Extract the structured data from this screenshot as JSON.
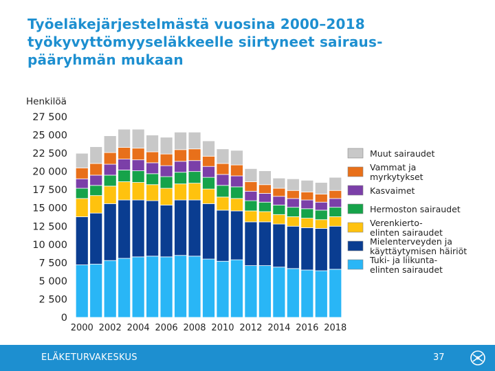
{
  "slide": {
    "title_lines": [
      "Työeläkejärjestelmästä vuosina 2000–2018",
      "työkyvyttömyyseläkkeelle siirtyneet sairaus-",
      "pääryhmän mukaan"
    ]
  },
  "footer": {
    "organization": "ELÄKETURVAKESKUS",
    "page_number": "37",
    "logo_icon": "eturva-logo-icon"
  },
  "colors": {
    "title": "#1d8fd0",
    "footer_bg": "#1d8fd0"
  },
  "chart_data": {
    "type": "bar",
    "stacked": true,
    "title": "",
    "ylabel": "Henkilöä",
    "xlabel": "",
    "ylim": [
      0,
      27500
    ],
    "yticks": [
      0,
      2500,
      5000,
      7500,
      10000,
      12500,
      15000,
      17500,
      20000,
      22500,
      25000,
      27500
    ],
    "ytick_labels": [
      "0",
      "2 500",
      "5 000",
      "7 500",
      "10 000",
      "12 500",
      "15 000",
      "17 500",
      "20 000",
      "22 500",
      "25 000",
      "27 500"
    ],
    "categories": [
      "2000",
      "2001",
      "2002",
      "2003",
      "2004",
      "2005",
      "2006",
      "2007",
      "2008",
      "2009",
      "2010",
      "2011",
      "2012",
      "2013",
      "2014",
      "2015",
      "2016",
      "2017",
      "2018"
    ],
    "xtick_labels": [
      "2000",
      "2002",
      "2004",
      "2006",
      "2008",
      "2010",
      "2012",
      "2014",
      "2016",
      "2018"
    ],
    "legend_position": "right",
    "legend_order": [
      "Muut sairaudet",
      "Vammat ja myrkytykset",
      "Kasvaimet",
      "Hermoston sairaudet",
      "Verenkierto-elinten sairaudet",
      "Mielenterveyden ja käyttäytymisen häiriöt",
      "Tuki- ja liikunta-elinten sairaudet"
    ],
    "series": [
      {
        "name": "Tuki- ja liikunta-elinten sairaudet",
        "legend_lines": [
          "Tuki- ja liikunta-",
          "elinten sairaudet"
        ],
        "color": "#29b6f6",
        "values": [
          7200,
          7300,
          7800,
          8100,
          8300,
          8400,
          8300,
          8500,
          8400,
          8000,
          7700,
          7900,
          7100,
          7100,
          6900,
          6700,
          6500,
          6400,
          6600
        ]
      },
      {
        "name": "Mielenterveyden ja käyttäytymisen häiriöt",
        "legend_lines": [
          "Mielenterveyden ja",
          "käyttäytymisen häiriöt"
        ],
        "color": "#0a3d91",
        "values": [
          6600,
          7000,
          7800,
          8000,
          7800,
          7600,
          7100,
          7600,
          7700,
          7600,
          7000,
          6700,
          6000,
          6000,
          5900,
          5800,
          5800,
          5800,
          5900
        ]
      },
      {
        "name": "Verenkierto-elinten sairaudet",
        "legend_lines": [
          "Verenkierto-",
          "elinten sairaudet"
        ],
        "color": "#ffc20e",
        "values": [
          2500,
          2400,
          2400,
          2500,
          2400,
          2200,
          2300,
          2200,
          2300,
          2000,
          1800,
          1700,
          1500,
          1400,
          1300,
          1300,
          1300,
          1200,
          1300
        ]
      },
      {
        "name": "Hermoston sairaudet",
        "legend_lines": [
          "Hermoston sairaudet"
        ],
        "color": "#16a34a",
        "values": [
          1400,
          1400,
          1500,
          1600,
          1600,
          1500,
          1600,
          1600,
          1600,
          1600,
          1600,
          1600,
          1400,
          1300,
          1300,
          1300,
          1300,
          1300,
          1300
        ]
      },
      {
        "name": "Kasvaimet",
        "legend_lines": [
          "Kasvaimet"
        ],
        "color": "#7b3fa8",
        "values": [
          1300,
          1400,
          1500,
          1500,
          1500,
          1500,
          1500,
          1500,
          1500,
          1500,
          1500,
          1500,
          1300,
          1200,
          1200,
          1200,
          1200,
          1100,
          1200
        ]
      },
      {
        "name": "Vammat ja myrkytykset",
        "legend_lines": [
          "Vammat ja",
          "myrkytykset"
        ],
        "color": "#e8701a",
        "values": [
          1500,
          1600,
          1600,
          1600,
          1600,
          1500,
          1600,
          1600,
          1600,
          1400,
          1500,
          1500,
          1300,
          1200,
          1100,
          1100,
          1100,
          1100,
          1100
        ]
      },
      {
        "name": "Muut sairaudet",
        "legend_lines": [
          "Muut sairaudet"
        ],
        "color": "#c8c8c8",
        "values": [
          2000,
          2300,
          2300,
          2500,
          2600,
          2300,
          2300,
          2400,
          2300,
          2100,
          2000,
          2000,
          1800,
          1900,
          1400,
          1600,
          1600,
          1600,
          1800
        ]
      }
    ]
  }
}
